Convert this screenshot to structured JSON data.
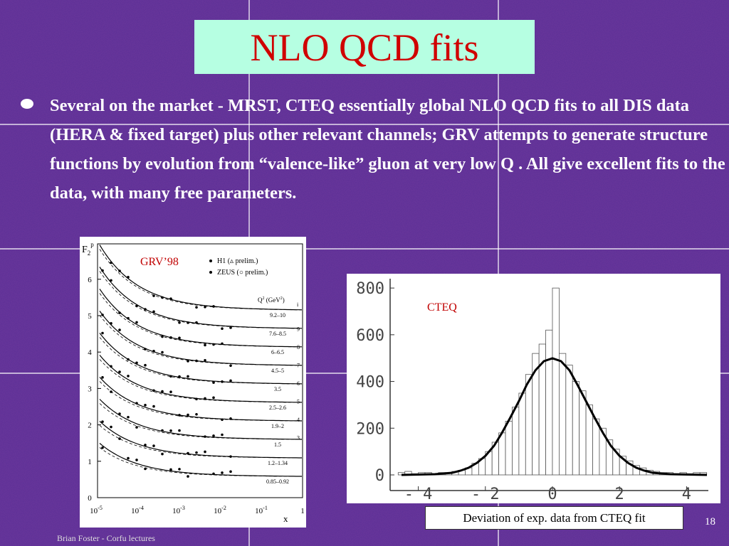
{
  "title": "NLO QCD fits",
  "bullet": "Several on the market - MRST, CTEQ essentially global NLO QCD fits to all DIS data (HERA & fixed target) plus other relevant channels; GRV attempts to generate structure functions by evolution from “valence-like” gluon at very low Q . All give excellent fits to the data, with many free parameters.",
  "figure_left": {
    "label": "GRV’98",
    "y_axis": [
      "F",
      "2",
      "p"
    ],
    "x_axis": "x",
    "yticks": [
      "0",
      "1",
      "2",
      "3",
      "4",
      "5",
      "6"
    ],
    "xticks": [
      [
        "10",
        "-5"
      ],
      [
        "10",
        "-4"
      ],
      [
        "10",
        "-3"
      ],
      [
        "10",
        "-2"
      ],
      [
        "10",
        "-1"
      ],
      [
        "1",
        ""
      ]
    ],
    "legend": [
      "H1 (▵ prelim.)",
      "ZEUS (○ prelim.)"
    ],
    "q2_header": [
      "Q",
      "2",
      " (GeV",
      "2",
      ")"
    ],
    "q2_bins": [
      "9.2–10",
      "7.6–8.5",
      "6–6.5",
      "4.5–5",
      "3.5",
      "2.5–2.6",
      "1.9–2",
      "1.5",
      "1.2–1.34",
      "0.85–0.92"
    ],
    "indices": [
      "i",
      "9",
      "8",
      "7",
      "6",
      "5",
      "4",
      "3"
    ]
  },
  "chart_data": {
    "type": "histogram",
    "title": "CTEQ",
    "bins": [
      -4.6,
      -4.4,
      -4.2,
      -4.0,
      -3.8,
      -3.6,
      -3.4,
      -3.2,
      -3.0,
      -2.8,
      -2.6,
      -2.4,
      -2.2,
      -2.0,
      -1.8,
      -1.6,
      -1.4,
      -1.2,
      -1.0,
      -0.8,
      -0.6,
      -0.4,
      -0.2,
      0.0,
      0.2,
      0.4,
      0.6,
      0.8,
      1.0,
      1.2,
      1.4,
      1.6,
      1.8,
      2.0,
      2.2,
      2.4,
      2.6,
      2.8,
      3.0,
      3.2,
      3.4,
      3.6,
      3.8,
      4.0,
      4.2,
      4.4,
      4.6
    ],
    "values": [
      10,
      15,
      5,
      10,
      10,
      5,
      10,
      10,
      15,
      20,
      30,
      50,
      70,
      100,
      140,
      180,
      230,
      290,
      350,
      430,
      520,
      560,
      620,
      800,
      520,
      470,
      400,
      360,
      300,
      240,
      200,
      150,
      110,
      80,
      60,
      40,
      30,
      20,
      15,
      10,
      10,
      5,
      10,
      5,
      10,
      10
    ],
    "xlim": [
      -4.84,
      4.65
    ],
    "ylim": [
      -67,
      840
    ],
    "xticks": [
      {
        "value": -4,
        "label": "- 4"
      },
      {
        "value": -2,
        "label": "- 2"
      },
      0,
      2,
      4
    ],
    "yticks": [
      0,
      200,
      400,
      600,
      800
    ],
    "color": "#ffffff"
  },
  "caption": "Deviation of exp. data from CTEQ fit",
  "page_number": "18",
  "footer": "Brian Foster - Corfu lectures"
}
